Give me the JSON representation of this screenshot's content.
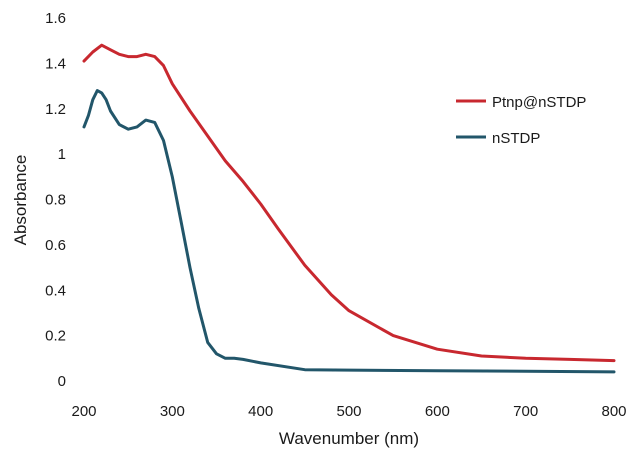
{
  "chart_data": {
    "type": "line",
    "title": "",
    "xlabel": "Wavenumber (nm)",
    "ylabel": "Absorbance",
    "xlim": [
      200,
      800
    ],
    "ylim": [
      0,
      1.6
    ],
    "x_ticks": [
      200,
      300,
      400,
      500,
      600,
      700,
      800
    ],
    "y_ticks": [
      0,
      0.2,
      0.4,
      0.6,
      0.8,
      1,
      1.2,
      1.4,
      1.6
    ],
    "x_tick_labels": [
      "200",
      "300",
      "400",
      "500",
      "600",
      "700",
      "800"
    ],
    "y_tick_labels": [
      "0",
      "0.2",
      "0.4",
      "0.6",
      "0.8",
      "1",
      "1.2",
      "1.4",
      "1.6"
    ],
    "grid": false,
    "legend_position": "right",
    "series": [
      {
        "name": "Ptnp@nSTDP",
        "color": "#c8282f",
        "x": [
          200,
          210,
          220,
          230,
          240,
          250,
          260,
          270,
          280,
          290,
          300,
          320,
          340,
          360,
          380,
          400,
          420,
          450,
          480,
          500,
          550,
          600,
          650,
          700,
          750,
          800
        ],
        "y": [
          1.41,
          1.45,
          1.48,
          1.46,
          1.44,
          1.43,
          1.43,
          1.44,
          1.43,
          1.39,
          1.31,
          1.19,
          1.08,
          0.97,
          0.88,
          0.78,
          0.67,
          0.51,
          0.38,
          0.31,
          0.2,
          0.14,
          0.11,
          0.1,
          0.095,
          0.09
        ]
      },
      {
        "name": "nSTDP",
        "color": "#22566a",
        "x": [
          200,
          205,
          210,
          215,
          220,
          225,
          230,
          240,
          250,
          260,
          270,
          280,
          290,
          300,
          310,
          320,
          330,
          340,
          350,
          360,
          370,
          380,
          400,
          450,
          500,
          600,
          700,
          800
        ],
        "y": [
          1.12,
          1.17,
          1.24,
          1.28,
          1.27,
          1.24,
          1.19,
          1.13,
          1.11,
          1.12,
          1.15,
          1.14,
          1.06,
          0.9,
          0.7,
          0.5,
          0.32,
          0.17,
          0.12,
          0.1,
          0.1,
          0.095,
          0.08,
          0.05,
          0.048,
          0.045,
          0.043,
          0.04
        ]
      }
    ]
  }
}
